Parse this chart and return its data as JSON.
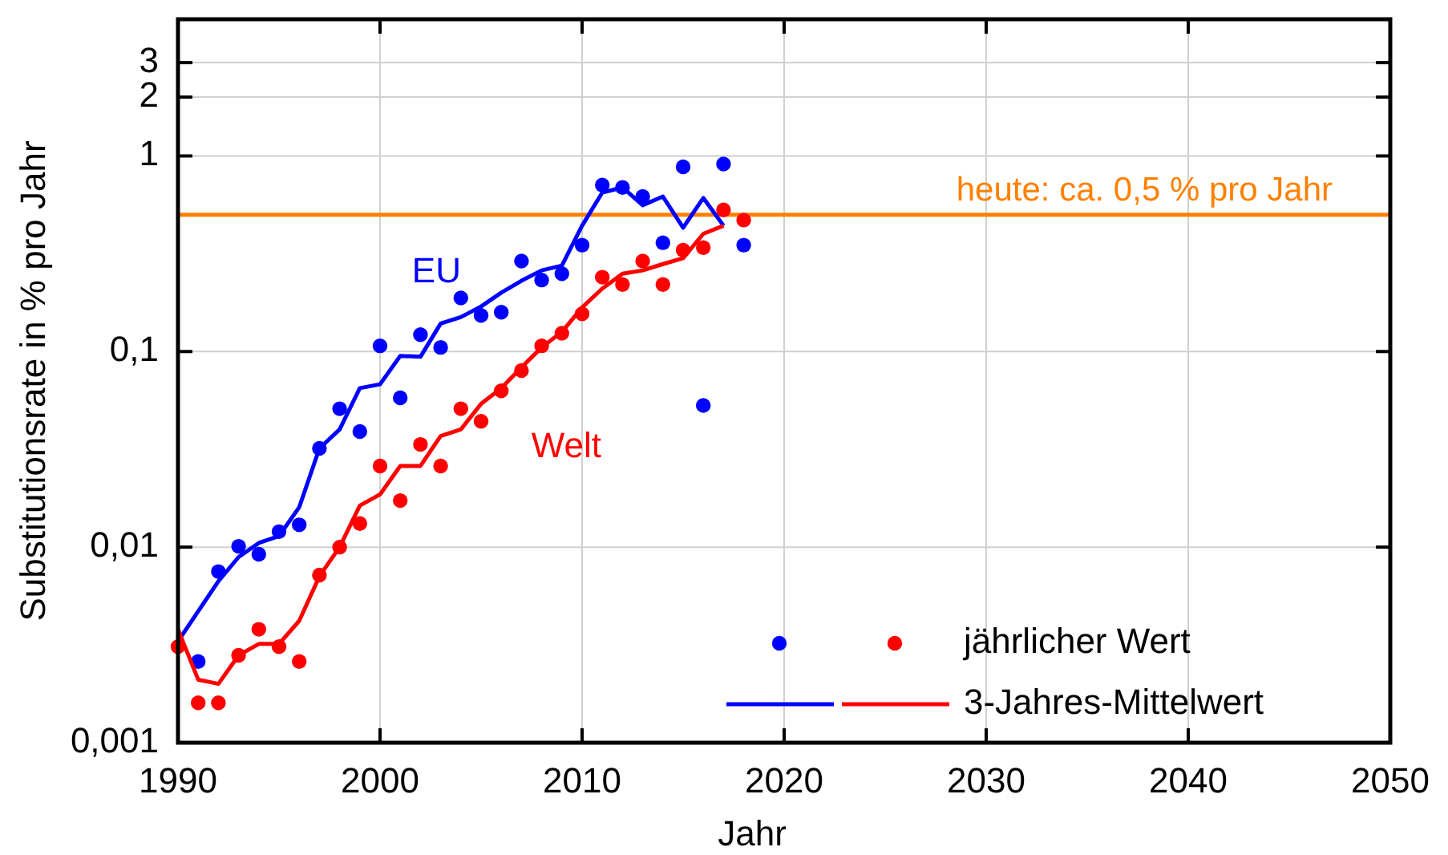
{
  "chart_data": {
    "type": "scatter",
    "xlabel": "Jahr",
    "ylabel": "Substitutionsrate in % pro Jahr",
    "log": "y",
    "grid": true,
    "legend": "bottom right",
    "marker": "circle",
    "xlim": [
      1990,
      2050
    ],
    "xticks": [
      1990,
      2000,
      2010,
      2020,
      2030,
      2040,
      2050
    ],
    "ylim": [
      0.001,
      5
    ],
    "yticks": [
      {
        "value": 0.001,
        "label": "0,001"
      },
      {
        "value": 0.01,
        "label": "0,01"
      },
      {
        "value": 0.1,
        "label": "0,1"
      },
      1,
      2,
      3
    ],
    "series": [
      {
        "color": "#0000ff",
        "x": [
          1991,
          1992,
          1993,
          1994,
          1995,
          1996,
          1997,
          1998,
          1999,
          2000,
          2001,
          2002,
          2003,
          2004,
          2005,
          2006,
          2007,
          2008,
          2009,
          2010,
          2011,
          2012,
          2013,
          2014,
          2015,
          2016,
          2017,
          2018
        ],
        "values": [
          0.0026,
          0.0075,
          0.0101,
          0.0092,
          0.012,
          0.013,
          0.032,
          0.051,
          0.039,
          0.107,
          0.058,
          0.122,
          0.105,
          0.188,
          0.153,
          0.159,
          0.29,
          0.232,
          0.25,
          0.35,
          0.71,
          0.69,
          0.62,
          0.36,
          0.88,
          0.053,
          0.91,
          0.35
        ]
      },
      {
        "name": "jährlicher Wert",
        "color": "#ff0000",
        "x": [
          1990,
          1991,
          1992,
          1993,
          1994,
          1995,
          1996,
          1997,
          1998,
          1999,
          2000,
          2001,
          2002,
          2003,
          2004,
          2005,
          2006,
          2007,
          2008,
          2009,
          2010,
          2011,
          2012,
          2013,
          2014,
          2015,
          2016,
          2017,
          2018
        ],
        "values": [
          0.0031,
          0.0016,
          0.0016,
          0.0028,
          0.0038,
          0.0031,
          0.0026,
          0.0072,
          0.01,
          0.0132,
          0.026,
          0.0173,
          0.0335,
          0.026,
          0.051,
          0.044,
          0.063,
          0.08,
          0.107,
          0.124,
          0.156,
          0.24,
          0.22,
          0.29,
          0.22,
          0.33,
          0.34,
          0.53,
          0.47
        ]
      },
      {
        "name": "EU",
        "type": "line",
        "marker": "none",
        "color": "#0000ff",
        "x": [
          1990,
          1991,
          1992,
          1993,
          1994,
          1995,
          1996,
          1997,
          1998,
          1999,
          2000,
          2001,
          2002,
          2003,
          2004,
          2005,
          2006,
          2007,
          2008,
          2009,
          2010,
          2011,
          2012,
          2013,
          2014,
          2015,
          2016,
          2017
        ],
        "values": [
          0.0033,
          0.0047,
          0.0067,
          0.0089,
          0.0105,
          0.0114,
          0.016,
          0.032,
          0.04,
          0.065,
          0.068,
          0.095,
          0.094,
          0.139,
          0.15,
          0.17,
          0.2,
          0.23,
          0.26,
          0.275,
          0.44,
          0.65,
          0.69,
          0.56,
          0.62,
          0.43,
          0.61,
          0.44
        ]
      },
      {
        "name": "3-Jahres-Mittelwert",
        "type": "line",
        "marker": "none",
        "color": "#ff0000",
        "x": [
          1990,
          1991,
          1992,
          1993,
          1994,
          1995,
          1996,
          1997,
          1998,
          1999,
          2000,
          2001,
          2002,
          2003,
          2004,
          2005,
          2006,
          2007,
          2008,
          2009,
          2010,
          2011,
          2012,
          2013,
          2014,
          2015,
          2016,
          2017
        ],
        "values": [
          0.0038,
          0.0021,
          0.002,
          0.0028,
          0.0032,
          0.0032,
          0.0042,
          0.0071,
          0.01,
          0.0163,
          0.0186,
          0.026,
          0.026,
          0.037,
          0.04,
          0.054,
          0.065,
          0.083,
          0.105,
          0.126,
          0.168,
          0.21,
          0.25,
          0.26,
          0.28,
          0.3,
          0.4,
          0.44
        ]
      }
    ],
    "ref_lines": [
      {
        "axis": "y",
        "value": 0.5,
        "label": "heute: ca. 0,5 % pro Jahr",
        "color": "#ff8000"
      }
    ],
    "annotations": [
      "Welt"
    ]
  }
}
